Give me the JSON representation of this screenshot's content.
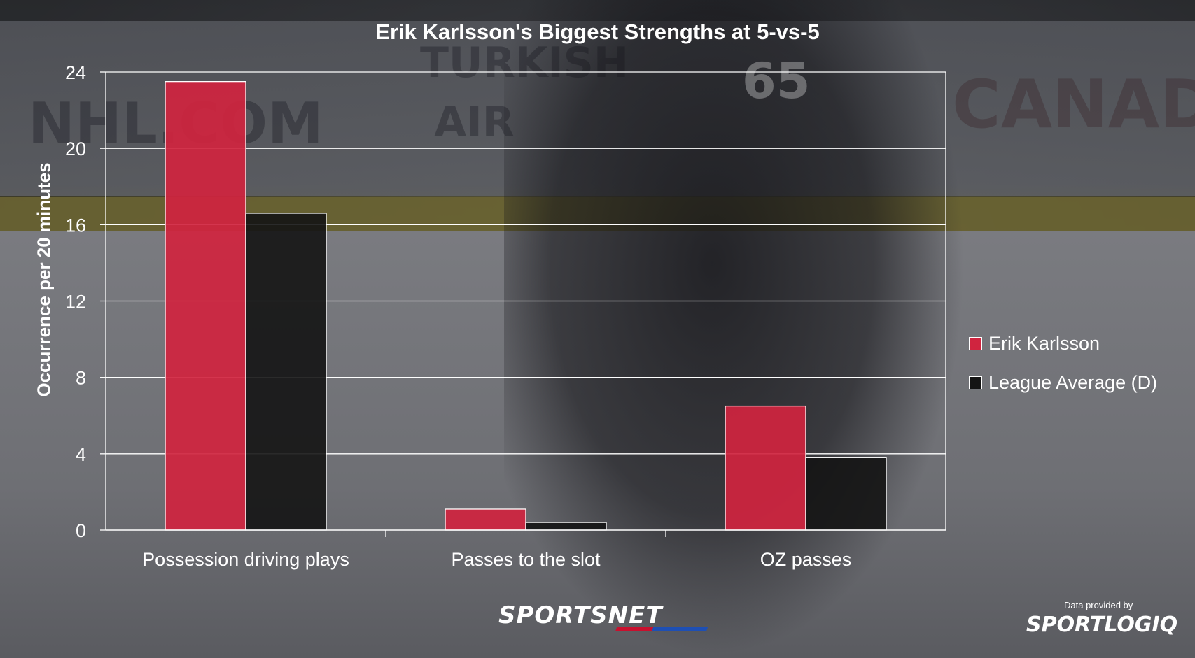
{
  "chart_data": {
    "type": "bar",
    "title": "Erik Karlsson's Biggest Strengths at 5-vs-5",
    "ylabel": "Occurrence per 20 minutes",
    "xlabel": "",
    "categories": [
      "Possession driving plays",
      "Passes to the slot",
      "OZ passes"
    ],
    "series": [
      {
        "name": "Erik Karlsson",
        "values": [
          23.5,
          1.1,
          6.5
        ],
        "color": "#d0243f"
      },
      {
        "name": "League Average (D)",
        "values": [
          16.6,
          0.4,
          3.8
        ],
        "color": "#141414"
      }
    ],
    "ylim": [
      0,
      24
    ],
    "yticks": [
      "0",
      "4",
      "8",
      "12",
      "16",
      "20",
      "24"
    ],
    "grid": true,
    "legend_position": "right"
  },
  "branding": {
    "sportsnet": "SPORTSNET",
    "data_provided_by": "Data provided by",
    "sportlogiq": "SPORTLOGIQ"
  },
  "background_text": {
    "nhl": "NHL.COM",
    "turkish": "TURKISH",
    "air": "AIR",
    "canada": "CANADIA",
    "number": "65"
  }
}
